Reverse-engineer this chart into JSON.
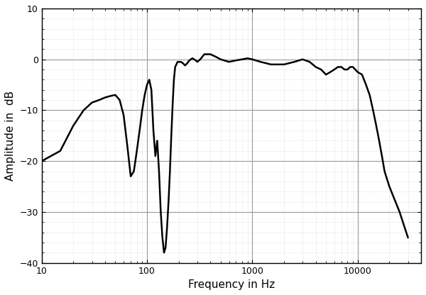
{
  "title": "",
  "xlabel": "Frequency in Hz",
  "ylabel": "Amplitude in  dB",
  "xlim": [
    10,
    40000
  ],
  "ylim": [
    -40,
    10
  ],
  "yticks": [
    -40,
    -30,
    -20,
    -10,
    0,
    10
  ],
  "background_color": "#ffffff",
  "line_color": "#000000",
  "line_width": 1.8,
  "grid_major_color": "#999999",
  "grid_minor_color": "#cccccc",
  "curve": {
    "freq": [
      10,
      15,
      20,
      25,
      30,
      35,
      40,
      45,
      50,
      55,
      60,
      65,
      70,
      75,
      80,
      85,
      90,
      95,
      100,
      105,
      110,
      115,
      120,
      125,
      130,
      135,
      140,
      145,
      150,
      155,
      160,
      165,
      170,
      175,
      180,
      185,
      190,
      195,
      200,
      210,
      220,
      230,
      240,
      250,
      260,
      270,
      280,
      290,
      300,
      320,
      350,
      400,
      450,
      500,
      600,
      700,
      800,
      900,
      1000,
      1200,
      1500,
      2000,
      2500,
      3000,
      3500,
      4000,
      4500,
      5000,
      5500,
      6000,
      6500,
      7000,
      7500,
      8000,
      8500,
      9000,
      9500,
      10000,
      11000,
      12000,
      13000,
      14000,
      15000,
      16000,
      17000,
      18000,
      20000,
      25000,
      30000
    ],
    "db": [
      -20,
      -18,
      -13,
      -10,
      -8.5,
      -8,
      -7.5,
      -7.2,
      -7,
      -8,
      -11,
      -17,
      -23,
      -22,
      -18,
      -14,
      -10,
      -7,
      -5,
      -4,
      -6,
      -14,
      -19,
      -16,
      -22,
      -30,
      -35,
      -38,
      -37,
      -33,
      -28,
      -22,
      -15,
      -9,
      -4,
      -1.5,
      -1,
      -0.5,
      -0.5,
      -0.5,
      -0.8,
      -1.2,
      -0.8,
      -0.3,
      0,
      0.2,
      0,
      -0.2,
      -0.5,
      0,
      1,
      1,
      0.5,
      0,
      -0.5,
      -0.2,
      0,
      0.2,
      0,
      -0.5,
      -1,
      -1,
      -0.5,
      0,
      -0.5,
      -1.5,
      -2,
      -3,
      -2.5,
      -2,
      -1.5,
      -1.5,
      -2,
      -2,
      -1.5,
      -1.5,
      -2,
      -2.5,
      -3,
      -5,
      -7,
      -10,
      -13,
      -16,
      -19,
      -22,
      -25,
      -30,
      -35
    ]
  }
}
